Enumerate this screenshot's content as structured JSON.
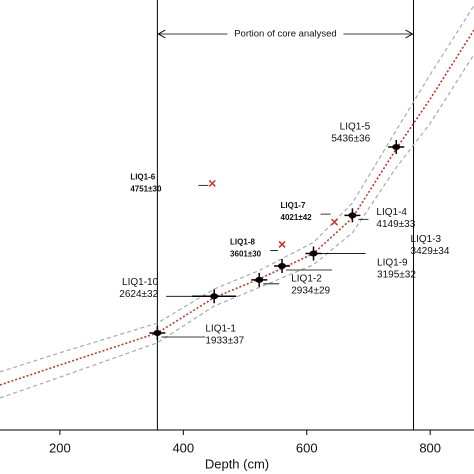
{
  "chart_data": {
    "type": "scatter",
    "xlabel": "Depth (cm)",
    "annotation": "Portion of core analysed",
    "core_bounds": [
      358,
      773
    ],
    "xlim": [
      103,
      871
    ],
    "ylim": [
      106,
      8204
    ],
    "xticks": [
      200,
      400,
      600,
      800
    ],
    "samples": {
      "color": "#000000",
      "labels": [
        "LIQ1-1",
        "LIQ1-10",
        "LIQ1-2",
        "LIQ1-9",
        "LIQ1-3",
        "LIQ1-4",
        "LIQ1-5"
      ],
      "x": [
        358,
        450,
        523,
        560,
        611,
        674,
        745
      ],
      "values": [
        1933,
        2624,
        2934,
        3195,
        3429,
        4149,
        5436
      ],
      "value_labels": [
        "1933±37",
        "2624±32",
        "2934±29",
        "3195±32",
        "3429±34",
        "4149±33",
        "5436±36"
      ]
    },
    "outliers": {
      "color": "#d0312d",
      "labels": [
        "LIQ1-6",
        "LIQ1-7",
        "LIQ1-8"
      ],
      "x": [
        447,
        645,
        560
      ],
      "values": [
        4751,
        4021,
        3601
      ],
      "value_labels": [
        "4751±30",
        "4021±42",
        "3601±30"
      ]
    },
    "model": {
      "color": "#c0392b",
      "x": [
        103,
        200,
        358,
        450,
        523,
        611,
        674,
        745,
        800,
        871
      ],
      "values": [
        954,
        1330,
        1933,
        2600,
        2950,
        3430,
        4100,
        5400,
        6340,
        7640
      ]
    },
    "envelope": {
      "color": "#aaaaaa",
      "x": [
        103,
        200,
        358,
        450,
        523,
        611,
        674,
        745,
        800,
        871
      ],
      "upper": [
        1200,
        1560,
        2120,
        2760,
        3110,
        3640,
        4380,
        5750,
        6800,
        8100
      ],
      "lower": [
        710,
        1100,
        1750,
        2440,
        2790,
        3220,
        3820,
        5050,
        5880,
        7180
      ]
    }
  }
}
